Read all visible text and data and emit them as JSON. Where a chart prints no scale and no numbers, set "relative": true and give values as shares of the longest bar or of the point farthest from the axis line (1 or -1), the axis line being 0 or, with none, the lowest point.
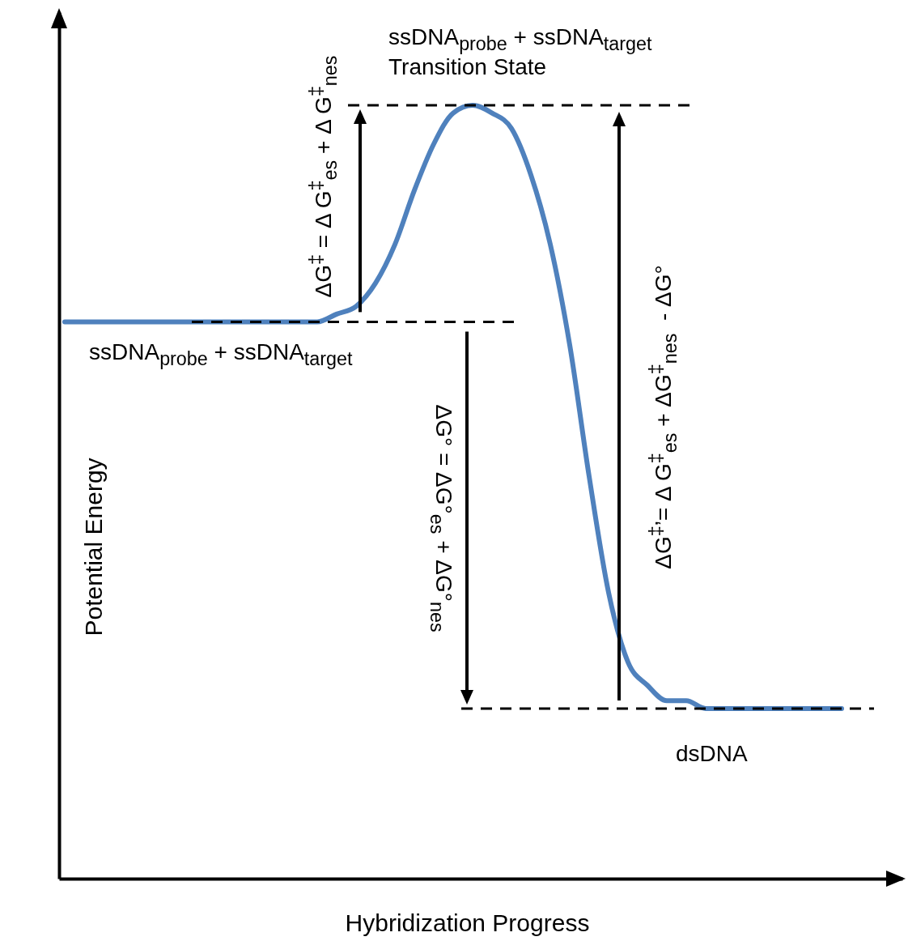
{
  "chart_data": {
    "type": "line",
    "relative": true,
    "tick_labels": false,
    "xlabel": "Hybridization Progress",
    "ylabel": "Potential Energy",
    "categories": [
      null,
      null,
      null,
      null,
      null,
      null,
      null,
      null,
      null,
      null,
      null,
      null,
      null,
      null,
      null,
      null,
      null,
      null,
      null,
      null,
      null,
      null,
      null,
      null,
      null,
      null,
      null,
      null,
      null,
      null,
      null,
      null,
      null,
      null,
      null,
      null,
      null,
      null,
      null,
      null,
      null
    ],
    "series": [
      {
        "color": "#4f81bd",
        "values": [
          0.72,
          0.72,
          0.72,
          0.72,
          0.72,
          0.72,
          0.72,
          0.72,
          0.72,
          0.72,
          0.72,
          0.72,
          0.72,
          0.72,
          0.73,
          0.74,
          0.77,
          0.82,
          0.89,
          0.95,
          0.99,
          1,
          0.99,
          0.97,
          0.91,
          0.82,
          0.69,
          0.52,
          0.37,
          0.28,
          0.25,
          0.23,
          0.23,
          0.22,
          0.22,
          0.22,
          0.22,
          0.22,
          0.22,
          0.22,
          0.22
        ]
      }
    ],
    "ref_lines": [
      {
        "axis": "y",
        "value": 0.72,
        "label": "ssDNA$_{probe}$ + ssDNA$_{target}$",
        "color": "#000000",
        "line_style": "dashed"
      },
      {
        "axis": "y",
        "value": 1,
        "label": "ssDNA$_{probe}$ + ssDNA$_{target}$\nTransition State",
        "color": "#000000",
        "line_style": "dashed"
      },
      {
        "axis": "y",
        "value": 0.22,
        "label": "dsDNA",
        "color": "#000000",
        "line_style": "dashed"
      }
    ],
    "annotations": [
      "ΔG$^{‡}$ = Δ G$^{‡}$$_{es}$ + Δ G$^{‡}$$_{nes}$",
      "ΔG° = ΔG°$_{es}$ + ΔG°$_{nes}$",
      "ΔG$^{‡}$’= Δ G$^{‡}$$_{es}$ + ΔG$^{‡}$$_{nes}$  - ΔG°"
    ]
  }
}
